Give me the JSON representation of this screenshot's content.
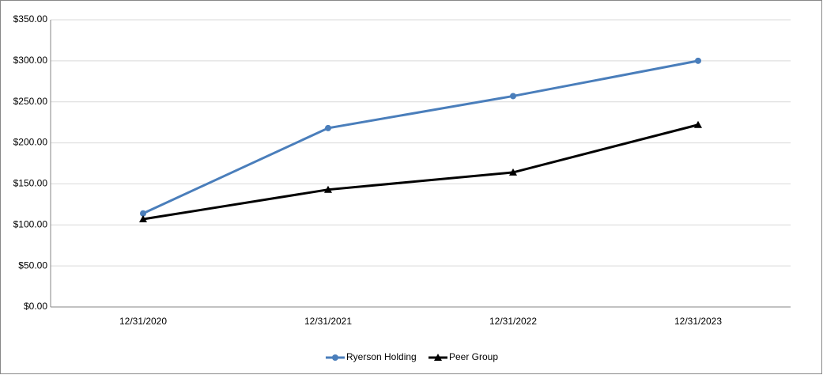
{
  "chart_data": {
    "type": "line",
    "categories": [
      "12/31/2020",
      "12/31/2021",
      "12/31/2022",
      "12/31/2023"
    ],
    "series": [
      {
        "name": "Ryerson Holding",
        "color": "#4a7ebb",
        "marker": "circle",
        "values": [
          114,
          218,
          257,
          300
        ]
      },
      {
        "name": "Peer Group",
        "color": "#000000",
        "marker": "triangle",
        "values": [
          107,
          143,
          164,
          222
        ]
      }
    ],
    "ylim": [
      0,
      350
    ],
    "yticks": [
      {
        "value": 0,
        "label": "$0.00"
      },
      {
        "value": 50,
        "label": "$50.00"
      },
      {
        "value": 100,
        "label": "$100.00"
      },
      {
        "value": 150,
        "label": "$150.00"
      },
      {
        "value": 200,
        "label": "$200.00"
      },
      {
        "value": 250,
        "label": "$250.00"
      },
      {
        "value": 300,
        "label": "$300.00"
      },
      {
        "value": 350,
        "label": "$350.00"
      }
    ],
    "grid": true,
    "legend": "bottom"
  }
}
